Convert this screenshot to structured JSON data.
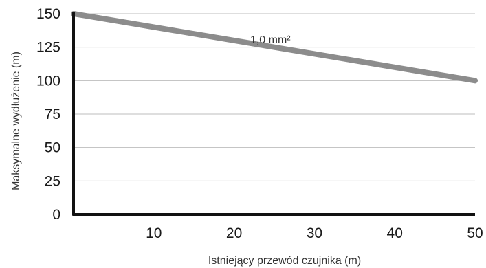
{
  "chart_data": {
    "type": "line",
    "title": "",
    "xlabel": "Istniejący przewód czujnika (m)",
    "ylabel": "Maksymalne wydłużenie (m)",
    "x_ticks": [
      "10",
      "20",
      "30",
      "40",
      "50"
    ],
    "y_ticks": [
      "0",
      "25",
      "50",
      "75",
      "100",
      "125",
      "150"
    ],
    "xlim": [
      0,
      50
    ],
    "ylim": [
      0,
      150
    ],
    "grid": "horizontal",
    "series": [
      {
        "name": "",
        "x": [
          0,
          50
        ],
        "y": [
          150,
          100
        ],
        "color": "#8c8c8c"
      }
    ],
    "annotations": [
      {
        "text": "1,0 mm²",
        "x": 22,
        "y": 128
      }
    ]
  }
}
